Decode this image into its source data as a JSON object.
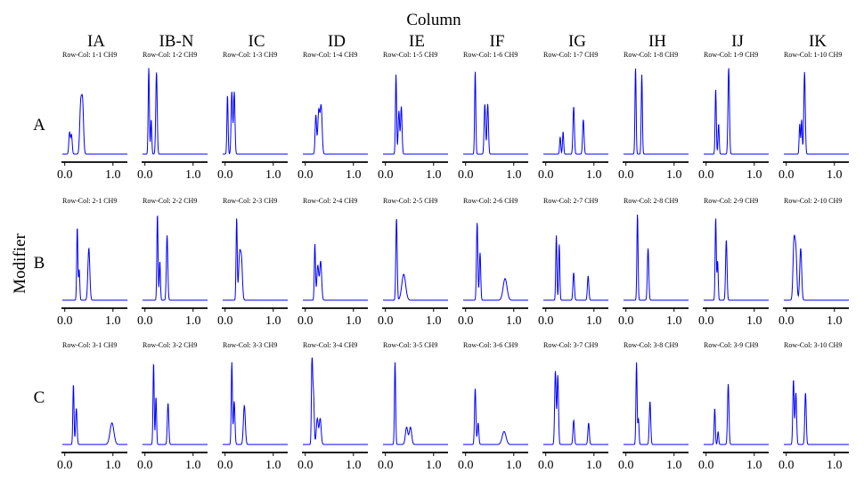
{
  "figure": {
    "column_title": "Column",
    "row_title": "Modifier",
    "columns": [
      "IA",
      "IB-N",
      "IC",
      "ID",
      "IE",
      "IF",
      "IG",
      "IH",
      "IJ",
      "IK"
    ],
    "rows": [
      "A",
      "B",
      "C"
    ]
  },
  "chart_data": {
    "type": "line",
    "layout": "small-multiples grid, 3 rows x 10 columns",
    "x_ticks": [
      "0.0",
      "1.0"
    ],
    "xlim": [
      -0.05,
      1.3
    ],
    "y_axis_shown": false,
    "grid": false,
    "line_color": "#0000ff",
    "panels": [
      {
        "label": "Row-Col: 1-1 CH9",
        "row": 1,
        "col": 1,
        "peaks": [
          [
            0.1,
            0.25,
            0.015
          ],
          [
            0.14,
            0.22,
            0.015
          ],
          [
            0.33,
            0.55,
            0.02
          ],
          [
            0.37,
            0.58,
            0.02
          ]
        ]
      },
      {
        "label": "Row-Col: 1-2 CH9",
        "row": 1,
        "col": 2,
        "peaks": [
          [
            0.08,
            1.0,
            0.012
          ],
          [
            0.13,
            0.4,
            0.012
          ],
          [
            0.24,
            0.95,
            0.015
          ]
        ]
      },
      {
        "label": "Row-Col: 1-3 CH9",
        "row": 1,
        "col": 3,
        "peaks": [
          [
            0.05,
            0.68,
            0.012
          ],
          [
            0.14,
            0.72,
            0.015
          ],
          [
            0.19,
            0.72,
            0.015
          ]
        ]
      },
      {
        "label": "Row-Col: 1-4 CH9",
        "row": 1,
        "col": 4,
        "peaks": [
          [
            0.22,
            0.45,
            0.015
          ],
          [
            0.28,
            0.5,
            0.02
          ],
          [
            0.33,
            0.55,
            0.02
          ]
        ]
      },
      {
        "label": "Row-Col: 1-5 CH9",
        "row": 1,
        "col": 5,
        "peaks": [
          [
            0.22,
            0.92,
            0.012
          ],
          [
            0.28,
            0.5,
            0.015
          ],
          [
            0.33,
            0.55,
            0.015
          ]
        ]
      },
      {
        "label": "Row-Col: 1-6 CH9",
        "row": 1,
        "col": 6,
        "peaks": [
          [
            0.2,
            0.96,
            0.012
          ],
          [
            0.4,
            0.58,
            0.015
          ],
          [
            0.46,
            0.58,
            0.015
          ]
        ]
      },
      {
        "label": "Row-Col: 1-7 CH9",
        "row": 1,
        "col": 7,
        "peaks": [
          [
            0.3,
            0.2,
            0.012
          ],
          [
            0.36,
            0.26,
            0.012
          ],
          [
            0.58,
            0.55,
            0.015
          ],
          [
            0.78,
            0.4,
            0.015
          ]
        ]
      },
      {
        "label": "Row-Col: 1-8 CH9",
        "row": 1,
        "col": 8,
        "peaks": [
          [
            0.2,
            1.0,
            0.012
          ],
          [
            0.33,
            0.92,
            0.012
          ]
        ]
      },
      {
        "label": "Row-Col: 1-9 CH9",
        "row": 1,
        "col": 9,
        "peaks": [
          [
            0.2,
            0.75,
            0.012
          ],
          [
            0.26,
            0.35,
            0.012
          ],
          [
            0.47,
            1.0,
            0.015
          ]
        ]
      },
      {
        "label": "Row-Col: 1-10 CH9",
        "row": 1,
        "col": 10,
        "peaks": [
          [
            0.28,
            0.35,
            0.012
          ],
          [
            0.32,
            0.4,
            0.012
          ],
          [
            0.38,
            0.95,
            0.015
          ]
        ]
      },
      {
        "label": "Row-Col: 2-1 CH9",
        "row": 2,
        "col": 1,
        "peaks": [
          [
            0.26,
            0.85,
            0.012
          ],
          [
            0.3,
            0.35,
            0.012
          ],
          [
            0.5,
            0.6,
            0.02
          ]
        ]
      },
      {
        "label": "Row-Col: 2-2 CH9",
        "row": 2,
        "col": 2,
        "peaks": [
          [
            0.26,
            1.0,
            0.012
          ],
          [
            0.31,
            0.45,
            0.012
          ],
          [
            0.46,
            0.75,
            0.015
          ]
        ]
      },
      {
        "label": "Row-Col: 2-3 CH9",
        "row": 2,
        "col": 3,
        "peaks": [
          [
            0.24,
            0.95,
            0.012
          ],
          [
            0.3,
            0.5,
            0.02
          ],
          [
            0.34,
            0.45,
            0.02
          ]
        ]
      },
      {
        "label": "Row-Col: 2-4 CH9",
        "row": 2,
        "col": 4,
        "peaks": [
          [
            0.2,
            0.65,
            0.012
          ],
          [
            0.26,
            0.4,
            0.02
          ],
          [
            0.32,
            0.45,
            0.02
          ]
        ]
      },
      {
        "label": "Row-Col: 2-5 CH9",
        "row": 2,
        "col": 5,
        "peaks": [
          [
            0.23,
            0.95,
            0.014
          ],
          [
            0.38,
            0.3,
            0.04
          ]
        ]
      },
      {
        "label": "Row-Col: 2-6 CH9",
        "row": 2,
        "col": 6,
        "peaks": [
          [
            0.24,
            0.9,
            0.014
          ],
          [
            0.3,
            0.55,
            0.014
          ],
          [
            0.82,
            0.25,
            0.04
          ]
        ]
      },
      {
        "label": "Row-Col: 2-7 CH9",
        "row": 2,
        "col": 7,
        "peaks": [
          [
            0.22,
            0.75,
            0.012
          ],
          [
            0.28,
            0.65,
            0.012
          ],
          [
            0.58,
            0.32,
            0.015
          ],
          [
            0.88,
            0.28,
            0.015
          ]
        ]
      },
      {
        "label": "Row-Col: 2-8 CH9",
        "row": 2,
        "col": 8,
        "peaks": [
          [
            0.24,
            1.0,
            0.012
          ],
          [
            0.46,
            0.6,
            0.015
          ]
        ]
      },
      {
        "label": "Row-Col: 2-9 CH9",
        "row": 2,
        "col": 9,
        "peaks": [
          [
            0.2,
            0.95,
            0.012
          ],
          [
            0.24,
            0.45,
            0.012
          ],
          [
            0.42,
            0.7,
            0.015
          ]
        ]
      },
      {
        "label": "Row-Col: 2-10 CH9",
        "row": 2,
        "col": 10,
        "peaks": [
          [
            0.16,
            0.65,
            0.02
          ],
          [
            0.2,
            0.55,
            0.02
          ],
          [
            0.3,
            0.6,
            0.02
          ]
        ]
      },
      {
        "label": "Row-Col: 3-1 CH9",
        "row": 3,
        "col": 1,
        "peaks": [
          [
            0.18,
            0.7,
            0.012
          ],
          [
            0.24,
            0.42,
            0.015
          ],
          [
            0.98,
            0.25,
            0.04
          ]
        ]
      },
      {
        "label": "Row-Col: 3-2 CH9",
        "row": 3,
        "col": 2,
        "peaks": [
          [
            0.18,
            0.95,
            0.012
          ],
          [
            0.23,
            0.55,
            0.012
          ],
          [
            0.48,
            0.48,
            0.015
          ]
        ]
      },
      {
        "label": "Row-Col: 3-3 CH9",
        "row": 3,
        "col": 3,
        "peaks": [
          [
            0.14,
            0.95,
            0.012
          ],
          [
            0.19,
            0.5,
            0.015
          ],
          [
            0.4,
            0.45,
            0.02
          ]
        ]
      },
      {
        "label": "Row-Col: 3-4 CH9",
        "row": 3,
        "col": 4,
        "peaks": [
          [
            0.14,
            1.0,
            0.012
          ],
          [
            0.17,
            0.6,
            0.015
          ],
          [
            0.25,
            0.3,
            0.02
          ],
          [
            0.31,
            0.3,
            0.02
          ]
        ]
      },
      {
        "label": "Row-Col: 3-5 CH9",
        "row": 3,
        "col": 5,
        "peaks": [
          [
            0.2,
            0.96,
            0.012
          ],
          [
            0.44,
            0.2,
            0.025
          ],
          [
            0.52,
            0.2,
            0.025
          ]
        ]
      },
      {
        "label": "Row-Col: 3-6 CH9",
        "row": 3,
        "col": 6,
        "peaks": [
          [
            0.2,
            0.65,
            0.014
          ],
          [
            0.26,
            0.25,
            0.015
          ],
          [
            0.8,
            0.15,
            0.04
          ]
        ]
      },
      {
        "label": "Row-Col: 3-7 CH9",
        "row": 3,
        "col": 7,
        "peaks": [
          [
            0.2,
            0.85,
            0.015
          ],
          [
            0.25,
            0.8,
            0.015
          ],
          [
            0.58,
            0.28,
            0.015
          ],
          [
            0.89,
            0.25,
            0.015
          ]
        ]
      },
      {
        "label": "Row-Col: 3-8 CH9",
        "row": 3,
        "col": 8,
        "peaks": [
          [
            0.22,
            0.95,
            0.012
          ],
          [
            0.26,
            0.3,
            0.012
          ],
          [
            0.5,
            0.5,
            0.015
          ]
        ]
      },
      {
        "label": "Row-Col: 3-9 CH9",
        "row": 3,
        "col": 9,
        "peaks": [
          [
            0.18,
            0.42,
            0.012
          ],
          [
            0.25,
            0.15,
            0.012
          ],
          [
            0.46,
            0.7,
            0.015
          ]
        ]
      },
      {
        "label": "Row-Col: 3-10 CH9",
        "row": 3,
        "col": 10,
        "peaks": [
          [
            0.15,
            0.75,
            0.014
          ],
          [
            0.2,
            0.6,
            0.015
          ],
          [
            0.4,
            0.6,
            0.015
          ]
        ]
      }
    ]
  }
}
